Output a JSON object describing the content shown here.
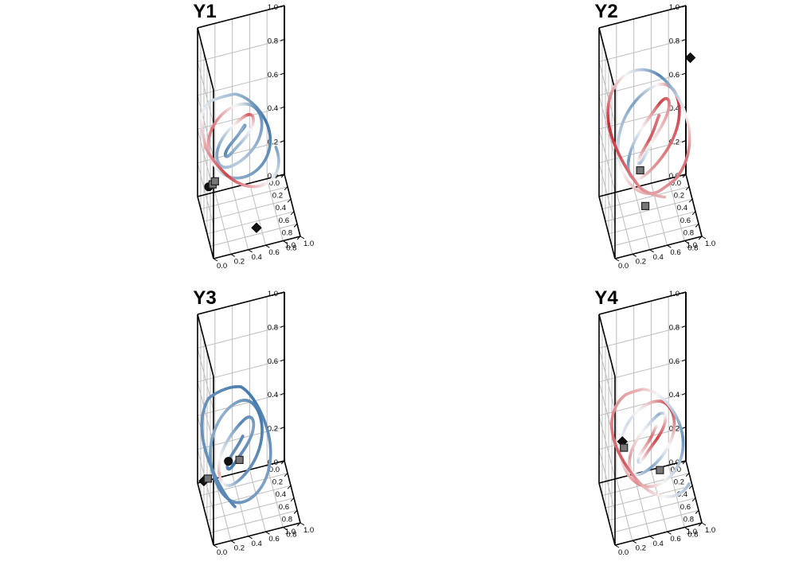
{
  "chart_data": [
    {
      "type": "line3d",
      "title": "Y1",
      "axis_ticks": [
        "0.0",
        "0.2",
        "0.4",
        "0.6",
        "0.8",
        "1.0"
      ],
      "xlim": [
        0,
        1
      ],
      "ylim": [
        0,
        1
      ],
      "zlim": [
        0,
        1
      ],
      "grid": true,
      "colormap": [
        "#2f6aa3",
        "#f7f7f7",
        "#c4141e"
      ],
      "trajectory": {
        "center": [
          0.42,
          0.38,
          0.45
        ],
        "turns": 4.2,
        "r_start": 0.08,
        "r_end": 0.52,
        "z_amp": 0.16,
        "phase": 0.3,
        "tilt": 0.35,
        "color_profile": [
          -0.9,
          -0.5,
          -0.8,
          -0.4,
          0.7,
          -0.6,
          -0.3,
          -0.8,
          0.6,
          -0.5,
          -0.9,
          -0.2,
          0.8,
          -0.6
        ]
      },
      "markers": [
        {
          "shape": "diamond",
          "color": "#111111",
          "x": 0.7,
          "y": 0.55,
          "z": 0.0
        },
        {
          "shape": "circle",
          "color": "#111111",
          "x": 0.15,
          "y": 0.1,
          "z": 0.1
        },
        {
          "shape": "square",
          "color": "#777777",
          "x": 0.18,
          "y": 0.14,
          "z": 0.12
        },
        {
          "shape": "square",
          "color": "#777777",
          "x": 0.22,
          "y": 0.16,
          "z": 0.15
        }
      ]
    },
    {
      "type": "line3d",
      "title": "Y2",
      "axis_ticks": [
        "0.0",
        "0.2",
        "0.4",
        "0.6",
        "0.8",
        "1.0"
      ],
      "xlim": [
        0,
        1
      ],
      "ylim": [
        0,
        1
      ],
      "zlim": [
        0,
        1
      ],
      "grid": true,
      "colormap": [
        "#2f6aa3",
        "#f7f7f7",
        "#c4141e"
      ],
      "trajectory": {
        "center": [
          0.55,
          0.5,
          0.5
        ],
        "turns": 3.8,
        "r_start": 0.1,
        "r_end": 0.58,
        "z_amp": 0.28,
        "phase": 1.4,
        "tilt": 0.5,
        "color_profile": [
          0.5,
          0.7,
          -0.4,
          0.3,
          0.8,
          -0.7,
          0.4,
          0.9,
          -0.6,
          0.2,
          0.6,
          -0.8,
          0.9,
          0.3
        ]
      },
      "markers": [
        {
          "shape": "diamond",
          "color": "#111111",
          "x": 0.55,
          "y": 0.95,
          "z": 0.9
        },
        {
          "shape": "square",
          "color": "#777777",
          "x": 0.4,
          "y": 0.4,
          "z": 0.25
        },
        {
          "shape": "square",
          "color": "#777777",
          "x": 0.45,
          "y": 0.45,
          "z": 0.05
        }
      ]
    },
    {
      "type": "line3d",
      "title": "Y3",
      "axis_ticks": [
        "0.0",
        "0.2",
        "0.4",
        "0.6",
        "0.8",
        "1.0"
      ],
      "xlim": [
        0,
        1
      ],
      "ylim": [
        0,
        1
      ],
      "zlim": [
        0,
        1
      ],
      "grid": true,
      "colormap": [
        "#2f6aa3",
        "#f7f7f7",
        "#c4141e"
      ],
      "trajectory": {
        "center": [
          0.38,
          0.4,
          0.3
        ],
        "turns": 3.6,
        "r_start": 0.1,
        "r_end": 0.48,
        "z_amp": 0.22,
        "phase": 2.2,
        "tilt": 0.25,
        "color_profile": [
          -0.8,
          -0.7,
          -0.9,
          -0.6,
          -0.8,
          0.3,
          -0.7,
          -0.9,
          -0.5,
          -0.8,
          -0.6,
          -0.9,
          -0.7,
          -0.8
        ]
      },
      "markers": [
        {
          "shape": "circle",
          "color": "#111111",
          "x": 0.3,
          "y": 0.3,
          "z": 0.2
        },
        {
          "shape": "diamond",
          "color": "#111111",
          "x": 0.12,
          "y": 0.05,
          "z": 0.05
        },
        {
          "shape": "square",
          "color": "#777777",
          "x": 0.45,
          "y": 0.4,
          "z": 0.25
        },
        {
          "shape": "square",
          "color": "#777777",
          "x": 0.1,
          "y": 0.1,
          "z": 0.05
        }
      ]
    },
    {
      "type": "line3d",
      "title": "Y4",
      "axis_ticks": [
        "0.0",
        "0.2",
        "0.4",
        "0.6",
        "0.8",
        "1.0"
      ],
      "xlim": [
        0,
        1
      ],
      "ylim": [
        0,
        1
      ],
      "zlim": [
        0,
        1
      ],
      "grid": true,
      "colormap": [
        "#2f6aa3",
        "#f7f7f7",
        "#c4141e"
      ],
      "trajectory": {
        "center": [
          0.45,
          0.5,
          0.35
        ],
        "turns": 4.0,
        "r_start": 0.08,
        "r_end": 0.52,
        "z_amp": 0.2,
        "phase": 0.9,
        "tilt": 0.4,
        "color_profile": [
          -0.4,
          0.6,
          -0.3,
          0.8,
          -0.5,
          0.4,
          -0.6,
          0.9,
          -0.2,
          0.5,
          -0.7,
          0.3,
          0.7,
          -0.4
        ]
      },
      "markers": [
        {
          "shape": "diamond",
          "color": "#111111",
          "x": 0.1,
          "y": 0.25,
          "z": 0.25
        },
        {
          "shape": "square",
          "color": "#777777",
          "x": 0.2,
          "y": 0.25,
          "z": 0.25
        },
        {
          "shape": "square",
          "color": "#777777",
          "x": 0.55,
          "y": 0.6,
          "z": 0.2
        }
      ]
    }
  ]
}
